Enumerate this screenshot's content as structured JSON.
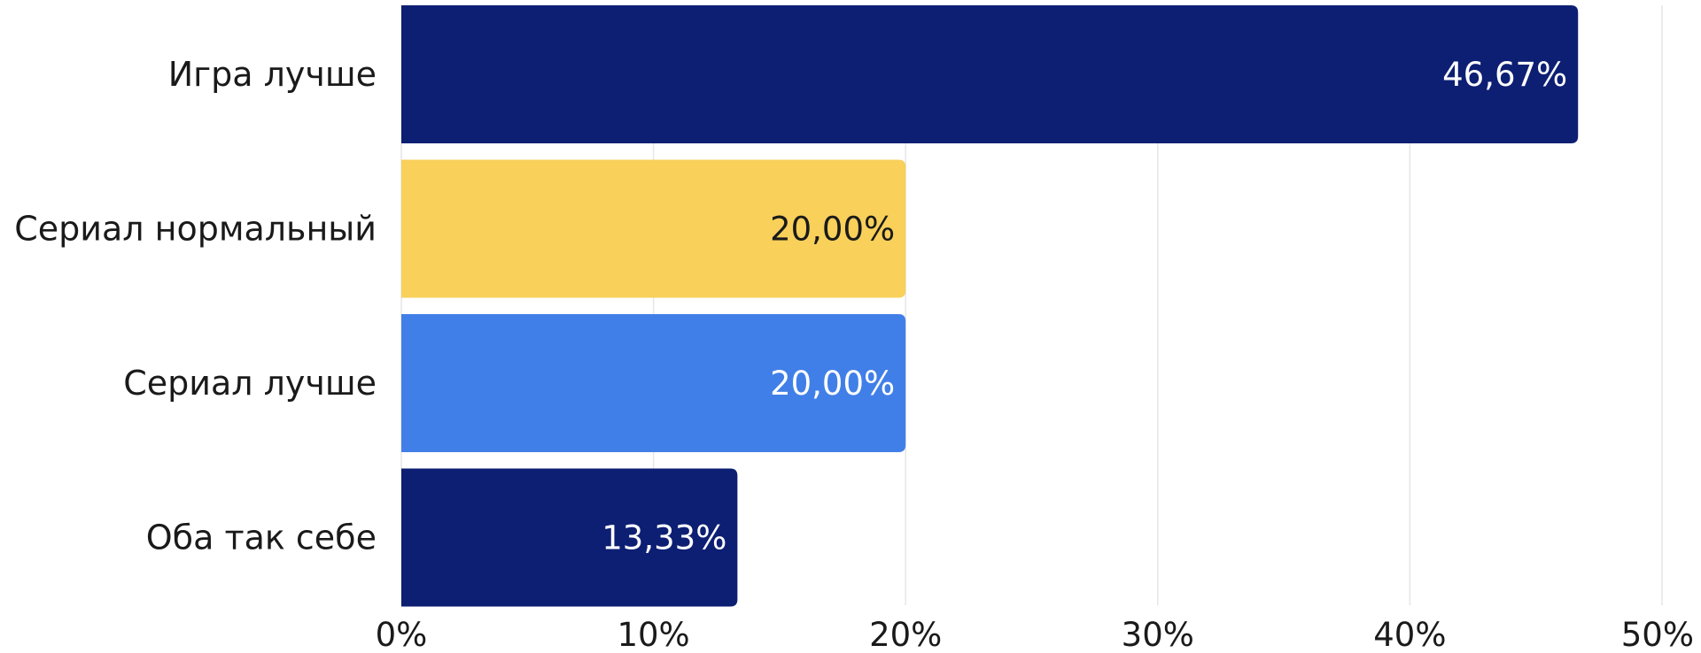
{
  "chart_data": {
    "type": "bar",
    "orientation": "horizontal",
    "categories": [
      "Игра лучше",
      "Сериал нормальный",
      "Сериал лучше",
      "Оба так себе"
    ],
    "values": [
      46.67,
      20.0,
      20.0,
      13.33
    ],
    "data_labels": [
      "46,67%",
      "20,00%",
      "20,00%",
      "13,33%"
    ],
    "bar_colors": [
      "#0d1f73",
      "#f8d05a",
      "#417fe8",
      "#0d1f73"
    ],
    "label_colors": [
      "#ffffff",
      "#1a1a1a",
      "#ffffff",
      "#ffffff"
    ],
    "xlim": [
      0,
      50
    ],
    "x_ticks": [
      0,
      10,
      20,
      30,
      40,
      50
    ],
    "x_tick_labels": [
      "0%",
      "10%",
      "20%",
      "30%",
      "40%",
      "50%"
    ],
    "grid": true,
    "grid_color": "#e6e6e6",
    "title": "",
    "xlabel": "",
    "ylabel": ""
  }
}
